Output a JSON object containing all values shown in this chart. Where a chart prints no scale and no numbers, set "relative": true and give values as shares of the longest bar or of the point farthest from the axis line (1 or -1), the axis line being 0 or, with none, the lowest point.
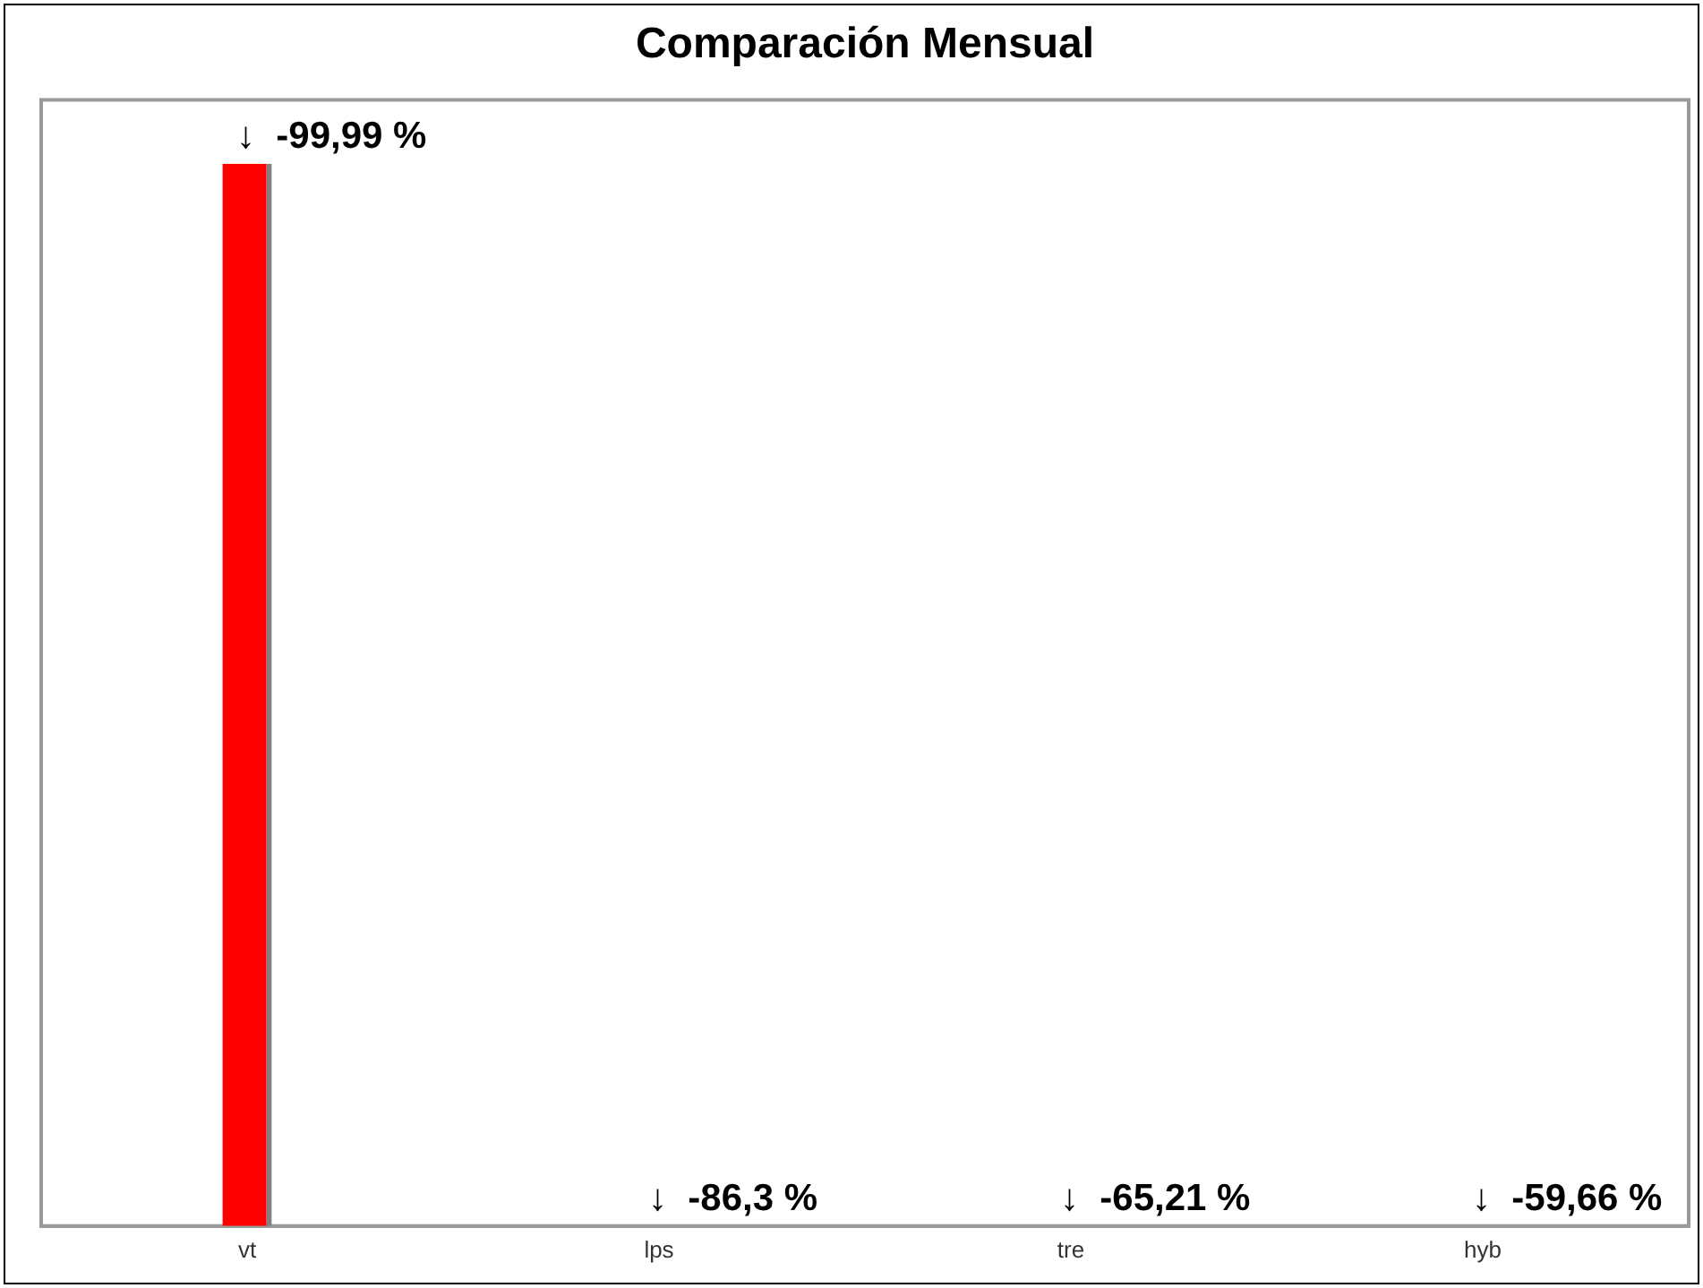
{
  "chart_data": {
    "type": "bar",
    "title": "Comparación Mensual",
    "categories": [
      "vt",
      "lps",
      "tre",
      "hyb"
    ],
    "values": [
      1,
      0,
      0,
      0
    ],
    "color": "#ff0000",
    "relative": true,
    "annotations": [
      {
        "text": "↓  -99,99 %",
        "x": "vt",
        "y": 1
      },
      {
        "text": "↓  -86,3 %",
        "x": "lps",
        "y": 0
      },
      {
        "text": "↓  -65,21 %",
        "x": "tre",
        "y": 0
      },
      {
        "text": "↓  -59,66 %",
        "x": "hyb",
        "y": 0
      }
    ],
    "grid": false,
    "legend": false
  }
}
